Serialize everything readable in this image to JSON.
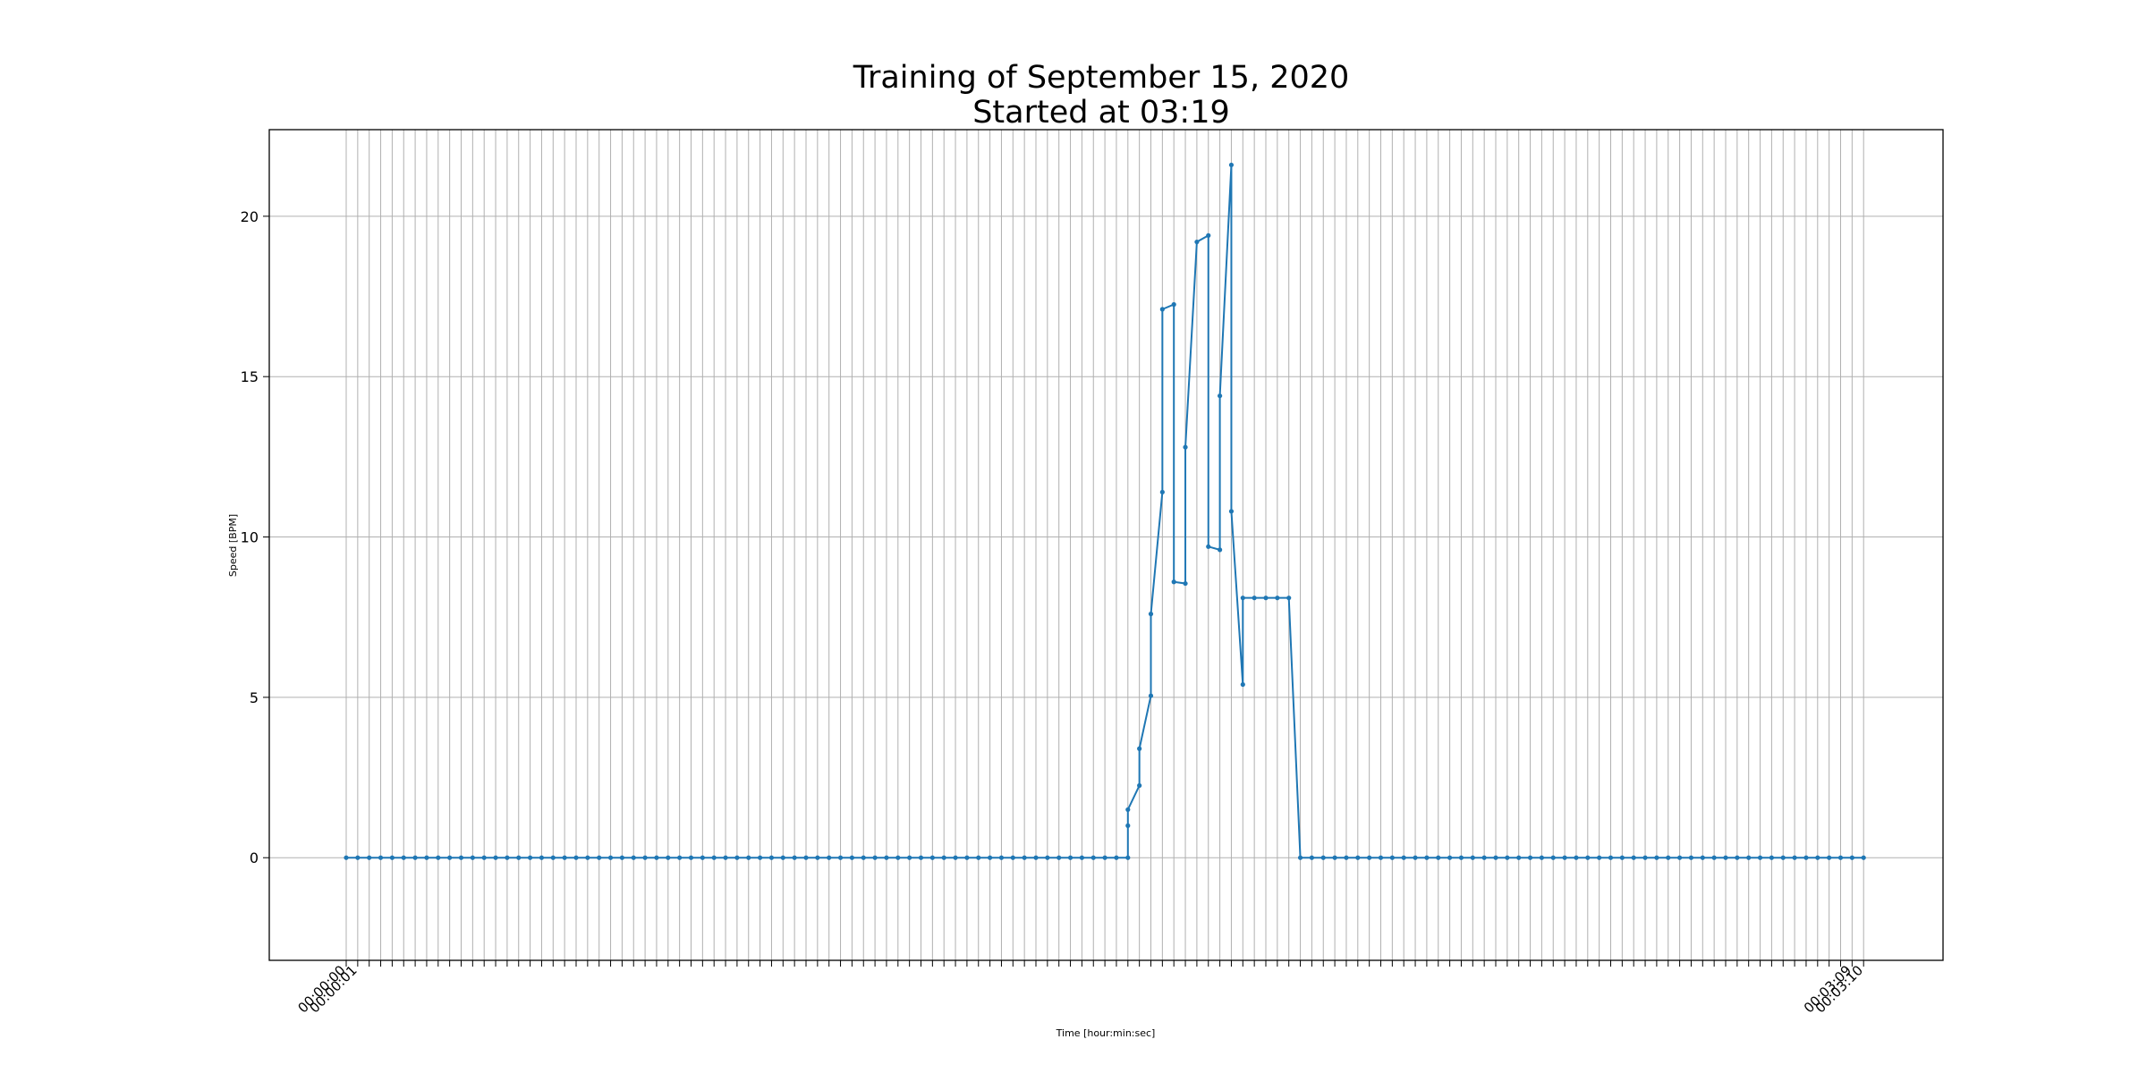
{
  "chart_data": {
    "type": "line",
    "title": "Training of September 15, 2020",
    "subtitle": "Started at 03:19",
    "xlabel": "Time [hour:min:sec]",
    "ylabel": "Speed [BPM]",
    "ylim": [
      -3.2,
      22.7
    ],
    "yticks": [
      0,
      5,
      10,
      15,
      20
    ],
    "grid": true,
    "legend": "none",
    "x_tick_labels_visible": [
      "00:00:00",
      "00:00:01",
      "00:03:09",
      "00:03:10"
    ],
    "series": [
      {
        "color": "#1f77b4",
        "marker": "dot",
        "points": [
          {
            "x": 0,
            "y": 0
          },
          {
            "x": 1,
            "y": 0
          },
          {
            "x": 2,
            "y": 0
          },
          {
            "x": 3,
            "y": 0
          },
          {
            "x": 4,
            "y": 0
          },
          {
            "x": 5,
            "y": 0
          },
          {
            "x": 6,
            "y": 0
          },
          {
            "x": 7,
            "y": 0
          },
          {
            "x": 8,
            "y": 0
          },
          {
            "x": 9,
            "y": 0
          },
          {
            "x": 10,
            "y": 0
          },
          {
            "x": 11,
            "y": 0
          },
          {
            "x": 12,
            "y": 0
          },
          {
            "x": 13,
            "y": 0
          },
          {
            "x": 14,
            "y": 0
          },
          {
            "x": 15,
            "y": 0
          },
          {
            "x": 16,
            "y": 0
          },
          {
            "x": 17,
            "y": 0
          },
          {
            "x": 18,
            "y": 0
          },
          {
            "x": 19,
            "y": 0
          },
          {
            "x": 20,
            "y": 0
          },
          {
            "x": 21,
            "y": 0
          },
          {
            "x": 22,
            "y": 0
          },
          {
            "x": 23,
            "y": 0
          },
          {
            "x": 24,
            "y": 0
          },
          {
            "x": 25,
            "y": 0
          },
          {
            "x": 26,
            "y": 0
          },
          {
            "x": 27,
            "y": 0
          },
          {
            "x": 28,
            "y": 0
          },
          {
            "x": 29,
            "y": 0
          },
          {
            "x": 30,
            "y": 0
          },
          {
            "x": 31,
            "y": 0
          },
          {
            "x": 32,
            "y": 0
          },
          {
            "x": 33,
            "y": 0
          },
          {
            "x": 34,
            "y": 0
          },
          {
            "x": 35,
            "y": 0
          },
          {
            "x": 36,
            "y": 0
          },
          {
            "x": 37,
            "y": 0
          },
          {
            "x": 38,
            "y": 0
          },
          {
            "x": 39,
            "y": 0
          },
          {
            "x": 40,
            "y": 0
          },
          {
            "x": 41,
            "y": 0
          },
          {
            "x": 42,
            "y": 0
          },
          {
            "x": 43,
            "y": 0
          },
          {
            "x": 44,
            "y": 0
          },
          {
            "x": 45,
            "y": 0
          },
          {
            "x": 46,
            "y": 0
          },
          {
            "x": 47,
            "y": 0
          },
          {
            "x": 48,
            "y": 0
          },
          {
            "x": 49,
            "y": 0
          },
          {
            "x": 50,
            "y": 0
          },
          {
            "x": 51,
            "y": 0
          },
          {
            "x": 52,
            "y": 0
          },
          {
            "x": 53,
            "y": 0
          },
          {
            "x": 54,
            "y": 0
          },
          {
            "x": 55,
            "y": 0
          },
          {
            "x": 56,
            "y": 0
          },
          {
            "x": 57,
            "y": 0
          },
          {
            "x": 58,
            "y": 0
          },
          {
            "x": 59,
            "y": 0
          },
          {
            "x": 60,
            "y": 0
          },
          {
            "x": 61,
            "y": 0
          },
          {
            "x": 62,
            "y": 0
          },
          {
            "x": 63,
            "y": 0
          },
          {
            "x": 64,
            "y": 0
          },
          {
            "x": 65,
            "y": 0
          },
          {
            "x": 66,
            "y": 0
          },
          {
            "x": 67,
            "y": 0
          },
          {
            "x": 68,
            "y": 0
          },
          {
            "x": 68,
            "y": 1.0
          },
          {
            "x": 68,
            "y": 1.5
          },
          {
            "x": 69,
            "y": 2.25
          },
          {
            "x": 69,
            "y": 3.4
          },
          {
            "x": 70,
            "y": 5.05
          },
          {
            "x": 70,
            "y": 7.6
          },
          {
            "x": 71,
            "y": 11.4
          },
          {
            "x": 71,
            "y": 17.1
          },
          {
            "x": 72,
            "y": 17.25
          },
          {
            "x": 72,
            "y": 8.6
          },
          {
            "x": 73,
            "y": 8.55
          },
          {
            "x": 73,
            "y": 12.8
          },
          {
            "x": 74,
            "y": 19.2
          },
          {
            "x": 75,
            "y": 19.4
          },
          {
            "x": 75,
            "y": 9.7
          },
          {
            "x": 76,
            "y": 9.6
          },
          {
            "x": 76,
            "y": 14.4
          },
          {
            "x": 77,
            "y": 21.6
          },
          {
            "x": 77,
            "y": 10.8
          },
          {
            "x": 78,
            "y": 5.4
          },
          {
            "x": 78,
            "y": 8.1
          },
          {
            "x": 79,
            "y": 8.1
          },
          {
            "x": 80,
            "y": 8.1
          },
          {
            "x": 81,
            "y": 8.1
          },
          {
            "x": 82,
            "y": 8.1
          },
          {
            "x": 83,
            "y": 0
          },
          {
            "x": 84,
            "y": 0
          },
          {
            "x": 85,
            "y": 0
          },
          {
            "x": 86,
            "y": 0
          },
          {
            "x": 87,
            "y": 0
          },
          {
            "x": 88,
            "y": 0
          },
          {
            "x": 89,
            "y": 0
          },
          {
            "x": 90,
            "y": 0
          },
          {
            "x": 91,
            "y": 0
          },
          {
            "x": 92,
            "y": 0
          },
          {
            "x": 93,
            "y": 0
          },
          {
            "x": 94,
            "y": 0
          },
          {
            "x": 95,
            "y": 0
          },
          {
            "x": 96,
            "y": 0
          },
          {
            "x": 97,
            "y": 0
          },
          {
            "x": 98,
            "y": 0
          },
          {
            "x": 99,
            "y": 0
          },
          {
            "x": 100,
            "y": 0
          },
          {
            "x": 101,
            "y": 0
          },
          {
            "x": 102,
            "y": 0
          },
          {
            "x": 103,
            "y": 0
          },
          {
            "x": 104,
            "y": 0
          },
          {
            "x": 105,
            "y": 0
          },
          {
            "x": 106,
            "y": 0
          },
          {
            "x": 107,
            "y": 0
          },
          {
            "x": 108,
            "y": 0
          },
          {
            "x": 109,
            "y": 0
          },
          {
            "x": 110,
            "y": 0
          },
          {
            "x": 111,
            "y": 0
          },
          {
            "x": 112,
            "y": 0
          },
          {
            "x": 113,
            "y": 0
          },
          {
            "x": 114,
            "y": 0
          },
          {
            "x": 115,
            "y": 0
          },
          {
            "x": 116,
            "y": 0
          },
          {
            "x": 117,
            "y": 0
          },
          {
            "x": 118,
            "y": 0
          },
          {
            "x": 119,
            "y": 0
          },
          {
            "x": 120,
            "y": 0
          },
          {
            "x": 121,
            "y": 0
          },
          {
            "x": 122,
            "y": 0
          },
          {
            "x": 123,
            "y": 0
          },
          {
            "x": 124,
            "y": 0
          },
          {
            "x": 125,
            "y": 0
          },
          {
            "x": 126,
            "y": 0
          },
          {
            "x": 127,
            "y": 0
          },
          {
            "x": 128,
            "y": 0
          },
          {
            "x": 129,
            "y": 0
          },
          {
            "x": 130,
            "y": 0
          },
          {
            "x": 131,
            "y": 0
          },
          {
            "x": 132,
            "y": 0
          }
        ]
      }
    ]
  }
}
